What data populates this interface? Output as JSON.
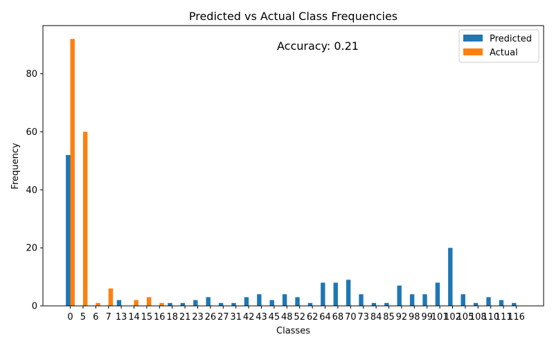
{
  "chart_data": {
    "type": "bar",
    "title": "Predicted vs Actual Class Frequencies",
    "xlabel": "Classes",
    "ylabel": "Frequency",
    "ylim": [
      0,
      96.6
    ],
    "yticks": [
      0,
      20,
      40,
      60,
      80
    ],
    "grid": false,
    "legend_position": "top-right",
    "annotation": "Accuracy: 0.21",
    "categories": [
      "0",
      "5",
      "6",
      "7",
      "13",
      "14",
      "15",
      "16",
      "18",
      "21",
      "23",
      "26",
      "27",
      "31",
      "42",
      "43",
      "45",
      "48",
      "52",
      "62",
      "64",
      "68",
      "70",
      "73",
      "84",
      "85",
      "92",
      "98",
      "99",
      "101",
      "102",
      "105",
      "108",
      "110",
      "111",
      "116"
    ],
    "series": [
      {
        "name": "Predicted",
        "color": "#1f77b4",
        "values": [
          52,
          0,
          0,
          0,
          2,
          0,
          0,
          0,
          1,
          1,
          2,
          3,
          1,
          1,
          3,
          4,
          2,
          4,
          3,
          1,
          8,
          8,
          9,
          4,
          1,
          1,
          7,
          4,
          4,
          8,
          20,
          4,
          1,
          3,
          2,
          1
        ]
      },
      {
        "name": "Actual",
        "color": "#ff7f0e",
        "values": [
          92,
          60,
          1,
          6,
          0,
          2,
          3,
          1,
          0,
          0,
          0,
          0,
          0,
          0,
          0,
          0,
          0,
          0,
          0,
          0,
          0,
          0,
          0,
          0,
          0,
          0,
          0,
          0,
          0,
          0,
          0,
          0,
          0,
          0,
          0,
          0
        ]
      }
    ]
  }
}
